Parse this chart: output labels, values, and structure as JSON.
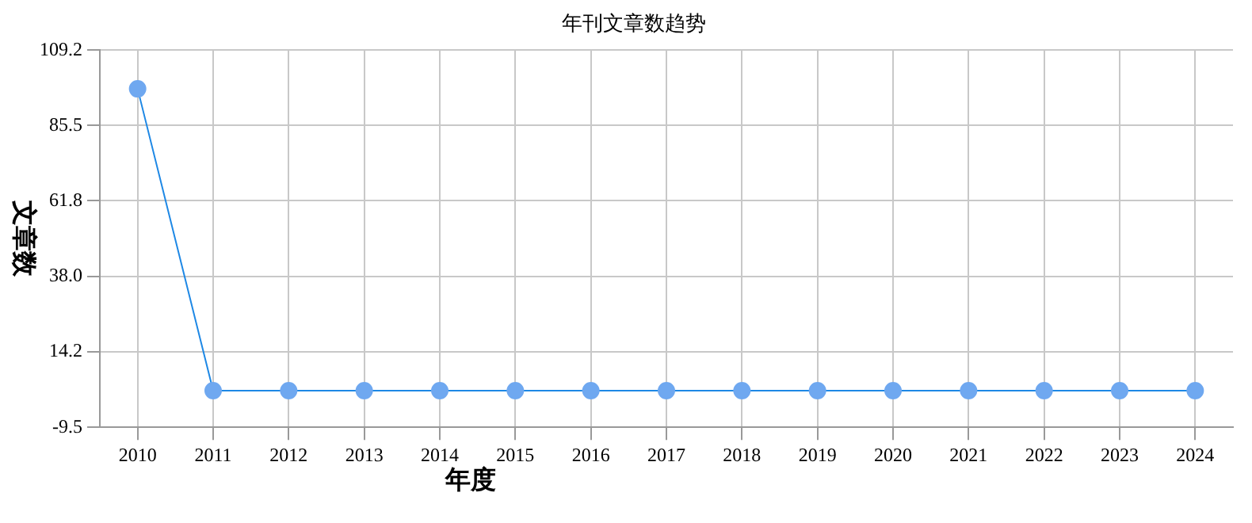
{
  "chart_data": {
    "type": "line",
    "title": "年刊文章数趋势",
    "xlabel": "年度",
    "ylabel": "文章数",
    "categories": [
      "2010",
      "2011",
      "2012",
      "2013",
      "2014",
      "2015",
      "2016",
      "2017",
      "2018",
      "2019",
      "2020",
      "2021",
      "2022",
      "2023",
      "2024"
    ],
    "series": [
      {
        "color": "#1e88e5",
        "values": [
          97,
          2,
          2,
          2,
          2,
          2,
          2,
          2,
          2,
          2,
          2,
          2,
          2,
          2,
          2
        ]
      }
    ],
    "ylim": [
      -9.5,
      109.2
    ],
    "yticks": [
      -9.5,
      14.2,
      {
        "value": 38,
        "label": "38.0"
      },
      61.8,
      85.5,
      109.2
    ],
    "grid": true,
    "legend": false,
    "marker": "circle",
    "line_style": "solid"
  }
}
